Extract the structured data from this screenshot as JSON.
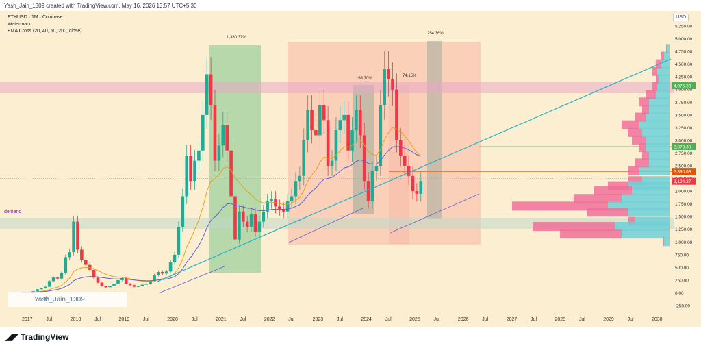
{
  "header": {
    "credit": "Yash_Jain_1309 created with TradingView.com, May 16, 2026 13:57 UTC+5:30"
  },
  "legend": {
    "symbol": "ETHUSD · 1M · Coinbase",
    "watermark": "Watermark",
    "indicator": "EMA Cross (20, 40, 50, 200, close)"
  },
  "currency": "USD",
  "demand_label": "demand",
  "watermark_text": "Yash_Jain_1309",
  "footer": {
    "brand": "TradingView"
  },
  "colors": {
    "background": "#fcefd1",
    "up": "#22ab94",
    "down": "#f23645",
    "ema_orange": "#e6a21a",
    "ema_blue": "#5b5fd6",
    "trend_cyan": "#1fb3c9",
    "green_zone": "#7cc48a",
    "red_zone": "#f8b7a6",
    "demand_zone": "#bfd9c8"
  },
  "chart_data": {
    "type": "candlestick",
    "yaxis": {
      "ticks": [
        "-250.00",
        "0.00",
        "250.00",
        "500.00",
        "750.00",
        "1,000.00",
        "1,250.00",
        "1,500.00",
        "1,750.00",
        "2,000.00",
        "2,250.00",
        "2,500.00",
        "2,750.00",
        "3,000.00",
        "3,250.00",
        "3,500.00",
        "3,750.00",
        "4,000.00",
        "4,250.00",
        "4,500.00",
        "4,750.00",
        "5,000.00",
        "5,250.00"
      ],
      "range": [
        -400,
        5400
      ]
    },
    "xaxis": {
      "labels": [
        "2017",
        "Jul",
        "2018",
        "Jul",
        "2019",
        "Jul",
        "2020",
        "Jul",
        "2021",
        "Jul",
        "2022",
        "Jul",
        "2023",
        "Jul",
        "2024",
        "Jul",
        "2025",
        "Jul",
        "2026",
        "Jul",
        "2027",
        "Jul",
        "2028",
        "Jul",
        "2029",
        "Jul",
        "2030"
      ]
    },
    "price_tags": [
      {
        "value": 4076.33,
        "label": "4,076.33",
        "color": "#4caf50"
      },
      {
        "value": 2878.38,
        "label": "2,878.38",
        "color": "#4caf50"
      },
      {
        "value": 2390.09,
        "label": "2,390.09",
        "color": "#e65100"
      },
      {
        "value": 2194.37,
        "label": "2,194.37",
        "color": "#f23645"
      }
    ],
    "annotations": [
      "1,380.37%",
      "168.70%",
      "74.15%",
      "254.36%"
    ],
    "series_ema_label": "EMA Cross"
  }
}
